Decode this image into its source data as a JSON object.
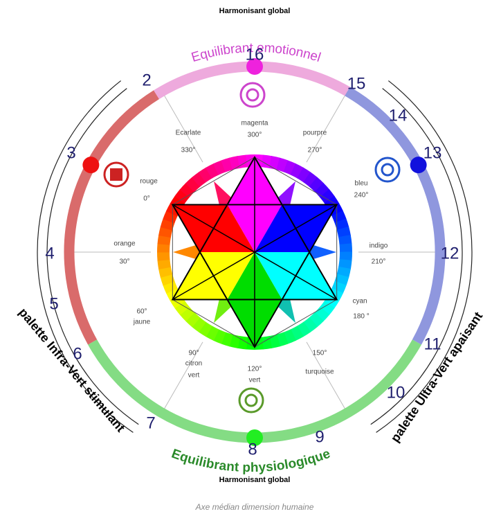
{
  "header": {
    "title": "Harmonisant global"
  },
  "arcs": {
    "top": "Equilibrant emotionnel",
    "bottom": "Equilibrant physiologique"
  },
  "palettes": {
    "left": "palette Infra-Vert stimulant",
    "right": "palette Ultra-Vert apaisant"
  },
  "numbers": [
    "2",
    "3",
    "4",
    "5",
    "6",
    "7",
    "8",
    "9",
    "10",
    "11",
    "12",
    "13",
    "14",
    "15",
    "16"
  ],
  "colors": [
    {
      "lines": [
        "magenta",
        "300°"
      ]
    },
    {
      "lines": [
        "pourpre",
        "270°"
      ]
    },
    {
      "lines": [
        "bleu",
        "240°"
      ]
    },
    {
      "lines": [
        "indigo",
        "210°"
      ]
    },
    {
      "lines": [
        "cyan",
        "180 °"
      ]
    },
    {
      "lines": [
        "150°",
        "turquoise"
      ]
    },
    {
      "lines": [
        "120°",
        "vert"
      ]
    },
    {
      "lines": [
        "90°",
        "citron",
        "vert"
      ]
    },
    {
      "lines": [
        "60°",
        "jaune"
      ]
    },
    {
      "lines": [
        "orange",
        "30°"
      ]
    },
    {
      "lines": [
        "rouge",
        "0°"
      ]
    },
    {
      "lines": [
        "Ecarlate",
        "330°"
      ]
    }
  ],
  "footer": {
    "title": "Harmonisant global",
    "caption": "Axe médian dimension humaine"
  }
}
